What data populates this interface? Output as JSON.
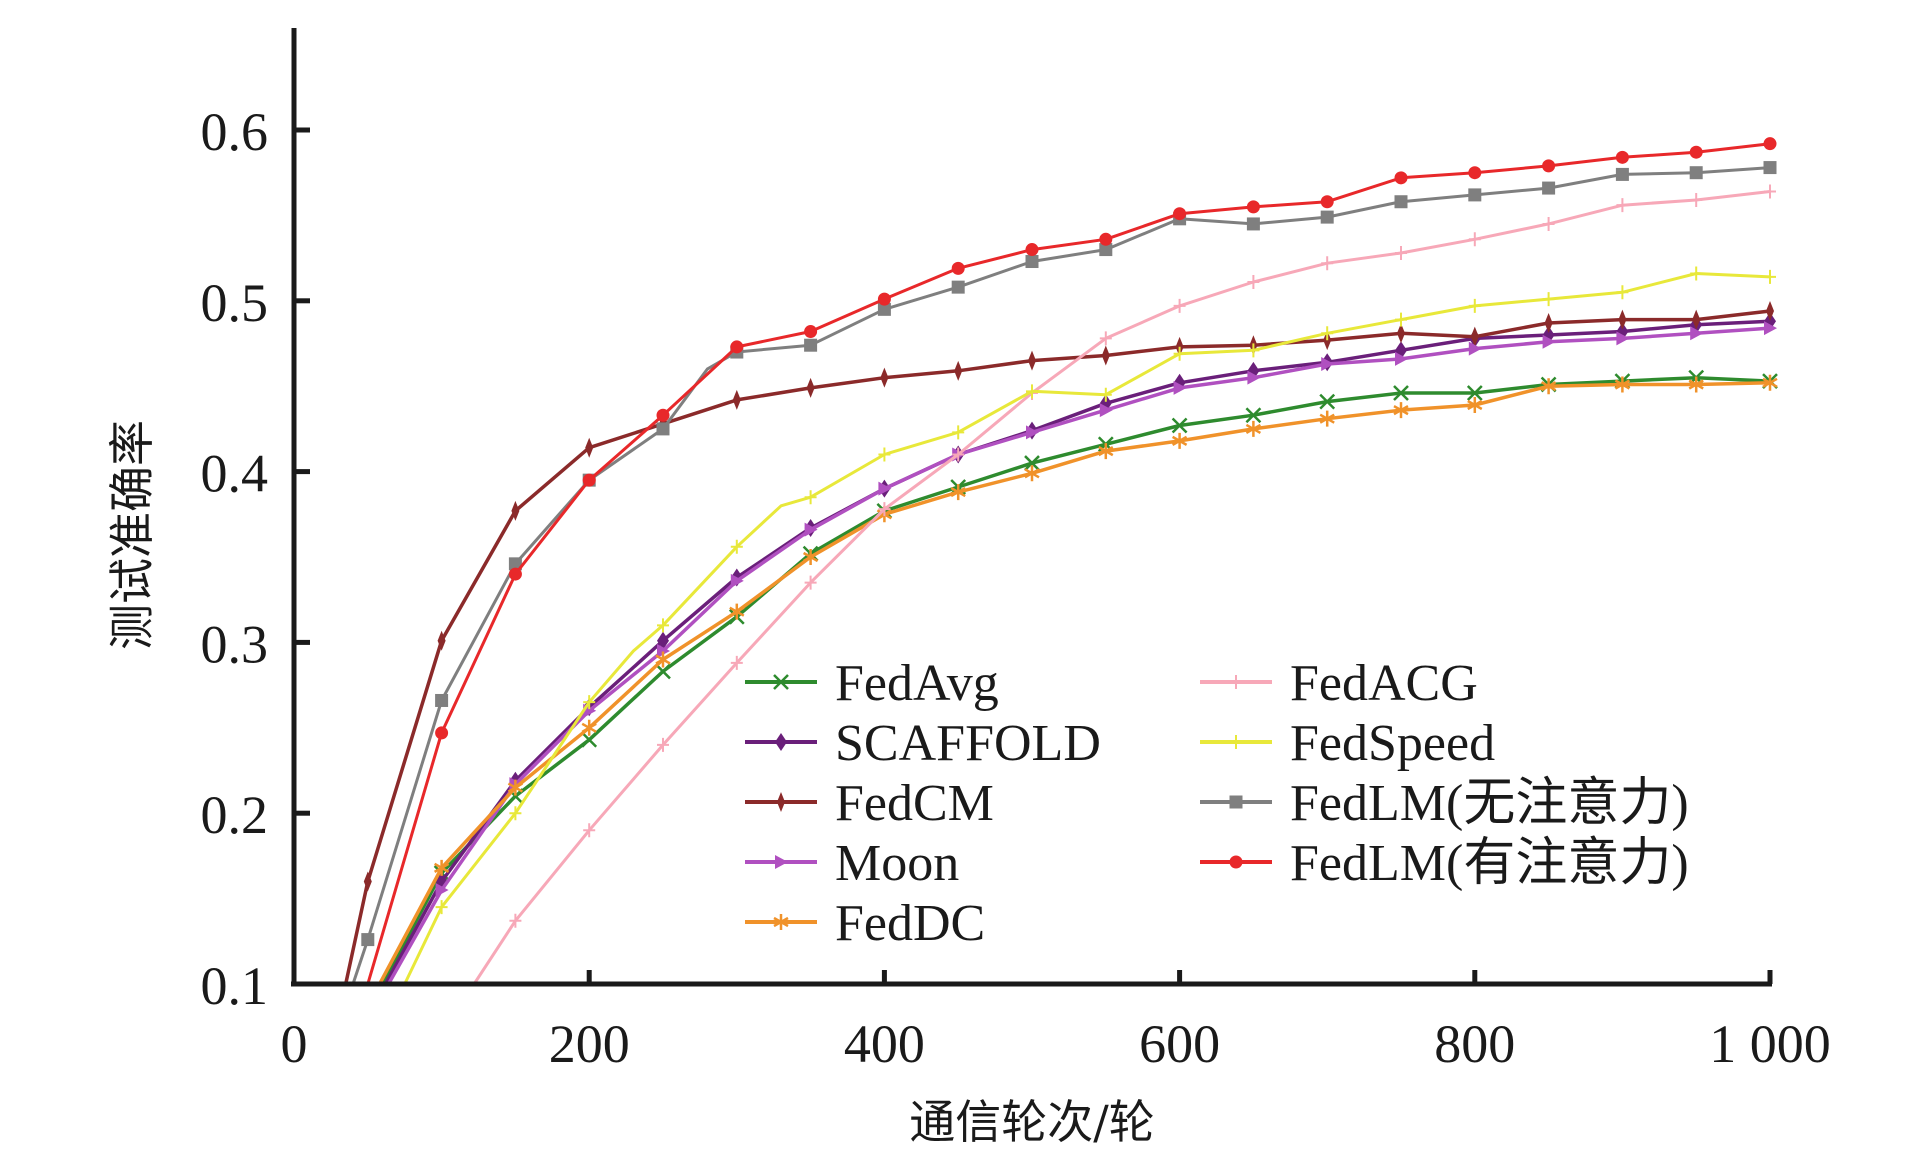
{
  "chart_data": {
    "type": "line",
    "title": "",
    "xlabel": "通信轮次/轮",
    "ylabel": "测试准确率",
    "xlim": [
      0,
      1000
    ],
    "ylim": [
      0.1,
      0.65
    ],
    "xticks": [
      0,
      200,
      400,
      600,
      800,
      1000
    ],
    "xtick_labels": [
      "0",
      "200",
      "400",
      "600",
      "800",
      "1 000"
    ],
    "yticks": [
      0.1,
      0.2,
      0.3,
      0.4,
      0.5,
      0.6
    ],
    "ytick_labels": [
      "0.1",
      "0.2",
      "0.3",
      "0.4",
      "0.5",
      "0.6"
    ],
    "grid": false,
    "legend_position": "lower-right",
    "series": [
      {
        "name": "FedAvg",
        "color": "#2e8b2e",
        "marker": "x",
        "x": [
          60,
          100,
          150,
          200,
          250,
          300,
          350,
          400,
          450,
          500,
          550,
          600,
          650,
          700,
          750,
          800,
          850,
          900,
          950,
          1000
        ],
        "y": [
          0.1,
          0.165,
          0.21,
          0.243,
          0.283,
          0.315,
          0.352,
          0.377,
          0.391,
          0.405,
          0.416,
          0.427,
          0.433,
          0.441,
          0.446,
          0.446,
          0.451,
          0.453,
          0.455,
          0.453
        ]
      },
      {
        "name": "SCAFFOLD",
        "color": "#6a1f7a",
        "marker": "diamond",
        "x": [
          62,
          100,
          150,
          200,
          250,
          300,
          350,
          400,
          450,
          500,
          550,
          600,
          650,
          700,
          750,
          800,
          850,
          900,
          950,
          1000
        ],
        "y": [
          0.1,
          0.16,
          0.219,
          0.262,
          0.301,
          0.338,
          0.367,
          0.39,
          0.41,
          0.424,
          0.44,
          0.452,
          0.459,
          0.464,
          0.471,
          0.478,
          0.48,
          0.482,
          0.486,
          0.488
        ]
      },
      {
        "name": "FedCM",
        "color": "#8b2a2a",
        "marker": "diamond-thin",
        "x": [
          35,
          50,
          100,
          150,
          200,
          250,
          300,
          350,
          400,
          450,
          500,
          550,
          600,
          650,
          700,
          750,
          800,
          850,
          900,
          950,
          1000
        ],
        "y": [
          0.1,
          0.16,
          0.301,
          0.377,
          0.414,
          0.428,
          0.442,
          0.449,
          0.455,
          0.459,
          0.465,
          0.468,
          0.473,
          0.474,
          0.477,
          0.481,
          0.479,
          0.487,
          0.489,
          0.489,
          0.494
        ]
      },
      {
        "name": "Moon",
        "color": "#b050c0",
        "marker": "triangle-right",
        "x": [
          64,
          100,
          150,
          200,
          250,
          300,
          350,
          400,
          450,
          500,
          550,
          600,
          650,
          700,
          750,
          800,
          850,
          900,
          950,
          1000
        ],
        "y": [
          0.1,
          0.155,
          0.217,
          0.26,
          0.295,
          0.336,
          0.366,
          0.39,
          0.41,
          0.423,
          0.436,
          0.449,
          0.455,
          0.463,
          0.466,
          0.472,
          0.476,
          0.478,
          0.481,
          0.484
        ]
      },
      {
        "name": "FedDC",
        "color": "#f0922a",
        "marker": "star",
        "x": [
          58,
          100,
          150,
          200,
          250,
          300,
          350,
          400,
          450,
          500,
          550,
          600,
          650,
          700,
          750,
          800,
          850,
          900,
          950,
          1000
        ],
        "y": [
          0.1,
          0.168,
          0.215,
          0.25,
          0.29,
          0.318,
          0.35,
          0.375,
          0.388,
          0.399,
          0.412,
          0.418,
          0.425,
          0.431,
          0.436,
          0.439,
          0.45,
          0.451,
          0.451,
          0.452
        ]
      },
      {
        "name": "FedACG",
        "color": "#f7a8b8",
        "marker": "plus",
        "x": [
          122,
          150,
          200,
          250,
          300,
          350,
          400,
          450,
          500,
          550,
          600,
          650,
          700,
          750,
          800,
          850,
          900,
          950,
          1000
        ],
        "y": [
          0.1,
          0.137,
          0.19,
          0.24,
          0.288,
          0.335,
          0.378,
          0.41,
          0.446,
          0.478,
          0.497,
          0.511,
          0.522,
          0.528,
          0.536,
          0.545,
          0.556,
          0.559,
          0.564
        ]
      },
      {
        "name": "FedSpeed",
        "color": "#e8e83a",
        "marker": "plus",
        "x": [
          75,
          100,
          150,
          200,
          230,
          250,
          300,
          330,
          350,
          400,
          450,
          500,
          550,
          600,
          650,
          700,
          750,
          800,
          850,
          900,
          950,
          1000
        ],
        "y": [
          0.1,
          0.145,
          0.2,
          0.265,
          0.295,
          0.31,
          0.356,
          0.38,
          0.385,
          0.41,
          0.423,
          0.447,
          0.445,
          0.469,
          0.471,
          0.481,
          0.489,
          0.497,
          0.501,
          0.505,
          0.516,
          0.514
        ]
      },
      {
        "name": "FedLM(无注意力)",
        "color": "#7f7f7f",
        "marker": "square",
        "x": [
          40,
          50,
          100,
          150,
          200,
          250,
          280,
          300,
          350,
          400,
          450,
          500,
          550,
          600,
          650,
          700,
          750,
          800,
          850,
          900,
          950,
          1000
        ],
        "y": [
          0.1,
          0.126,
          0.266,
          0.346,
          0.395,
          0.425,
          0.46,
          0.47,
          0.474,
          0.495,
          0.508,
          0.523,
          0.53,
          0.548,
          0.545,
          0.549,
          0.558,
          0.562,
          0.566,
          0.574,
          0.575,
          0.578
        ]
      },
      {
        "name": "FedLM(有注意力)",
        "color": "#e8282a",
        "marker": "circle",
        "x": [
          50,
          100,
          150,
          200,
          250,
          300,
          350,
          400,
          450,
          500,
          550,
          600,
          650,
          700,
          750,
          800,
          850,
          900,
          950,
          1000
        ],
        "y": [
          0.1,
          0.247,
          0.34,
          0.395,
          0.433,
          0.473,
          0.482,
          0.501,
          0.519,
          0.53,
          0.536,
          0.551,
          0.555,
          0.558,
          0.572,
          0.575,
          0.579,
          0.584,
          0.587,
          0.592
        ]
      }
    ]
  }
}
